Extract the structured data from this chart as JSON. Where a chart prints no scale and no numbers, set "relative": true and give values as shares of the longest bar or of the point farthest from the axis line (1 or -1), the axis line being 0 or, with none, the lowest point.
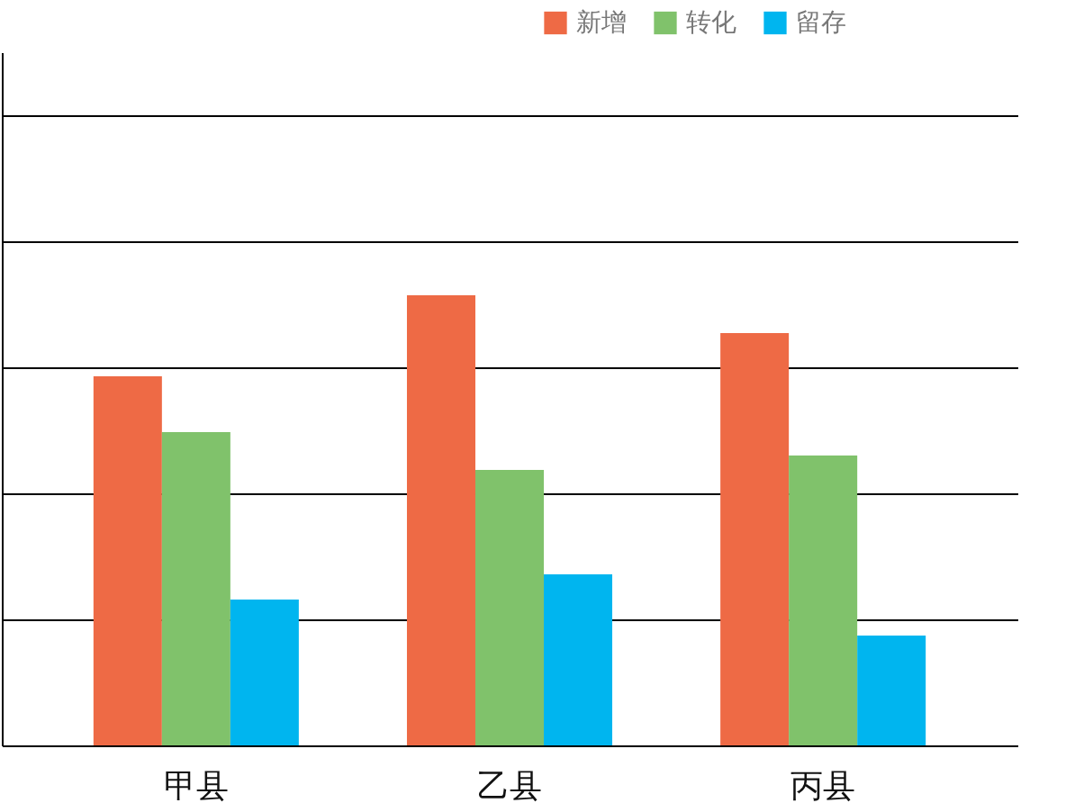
{
  "chart_data": {
    "type": "bar",
    "relative": true,
    "grid": true,
    "legend": "top right",
    "categories": [
      "甲县",
      "乙县",
      "丙县"
    ],
    "series": [
      {
        "name": "新增",
        "color": "#ee6a45",
        "values": [
          0.82,
          1,
          0.916
        ]
      },
      {
        "name": "转化",
        "color": "#80c26b",
        "values": [
          0.696,
          0.612,
          0.644
        ]
      },
      {
        "name": "留存",
        "color": "#00b5ef",
        "values": [
          0.324,
          0.38,
          0.244
        ]
      }
    ]
  }
}
